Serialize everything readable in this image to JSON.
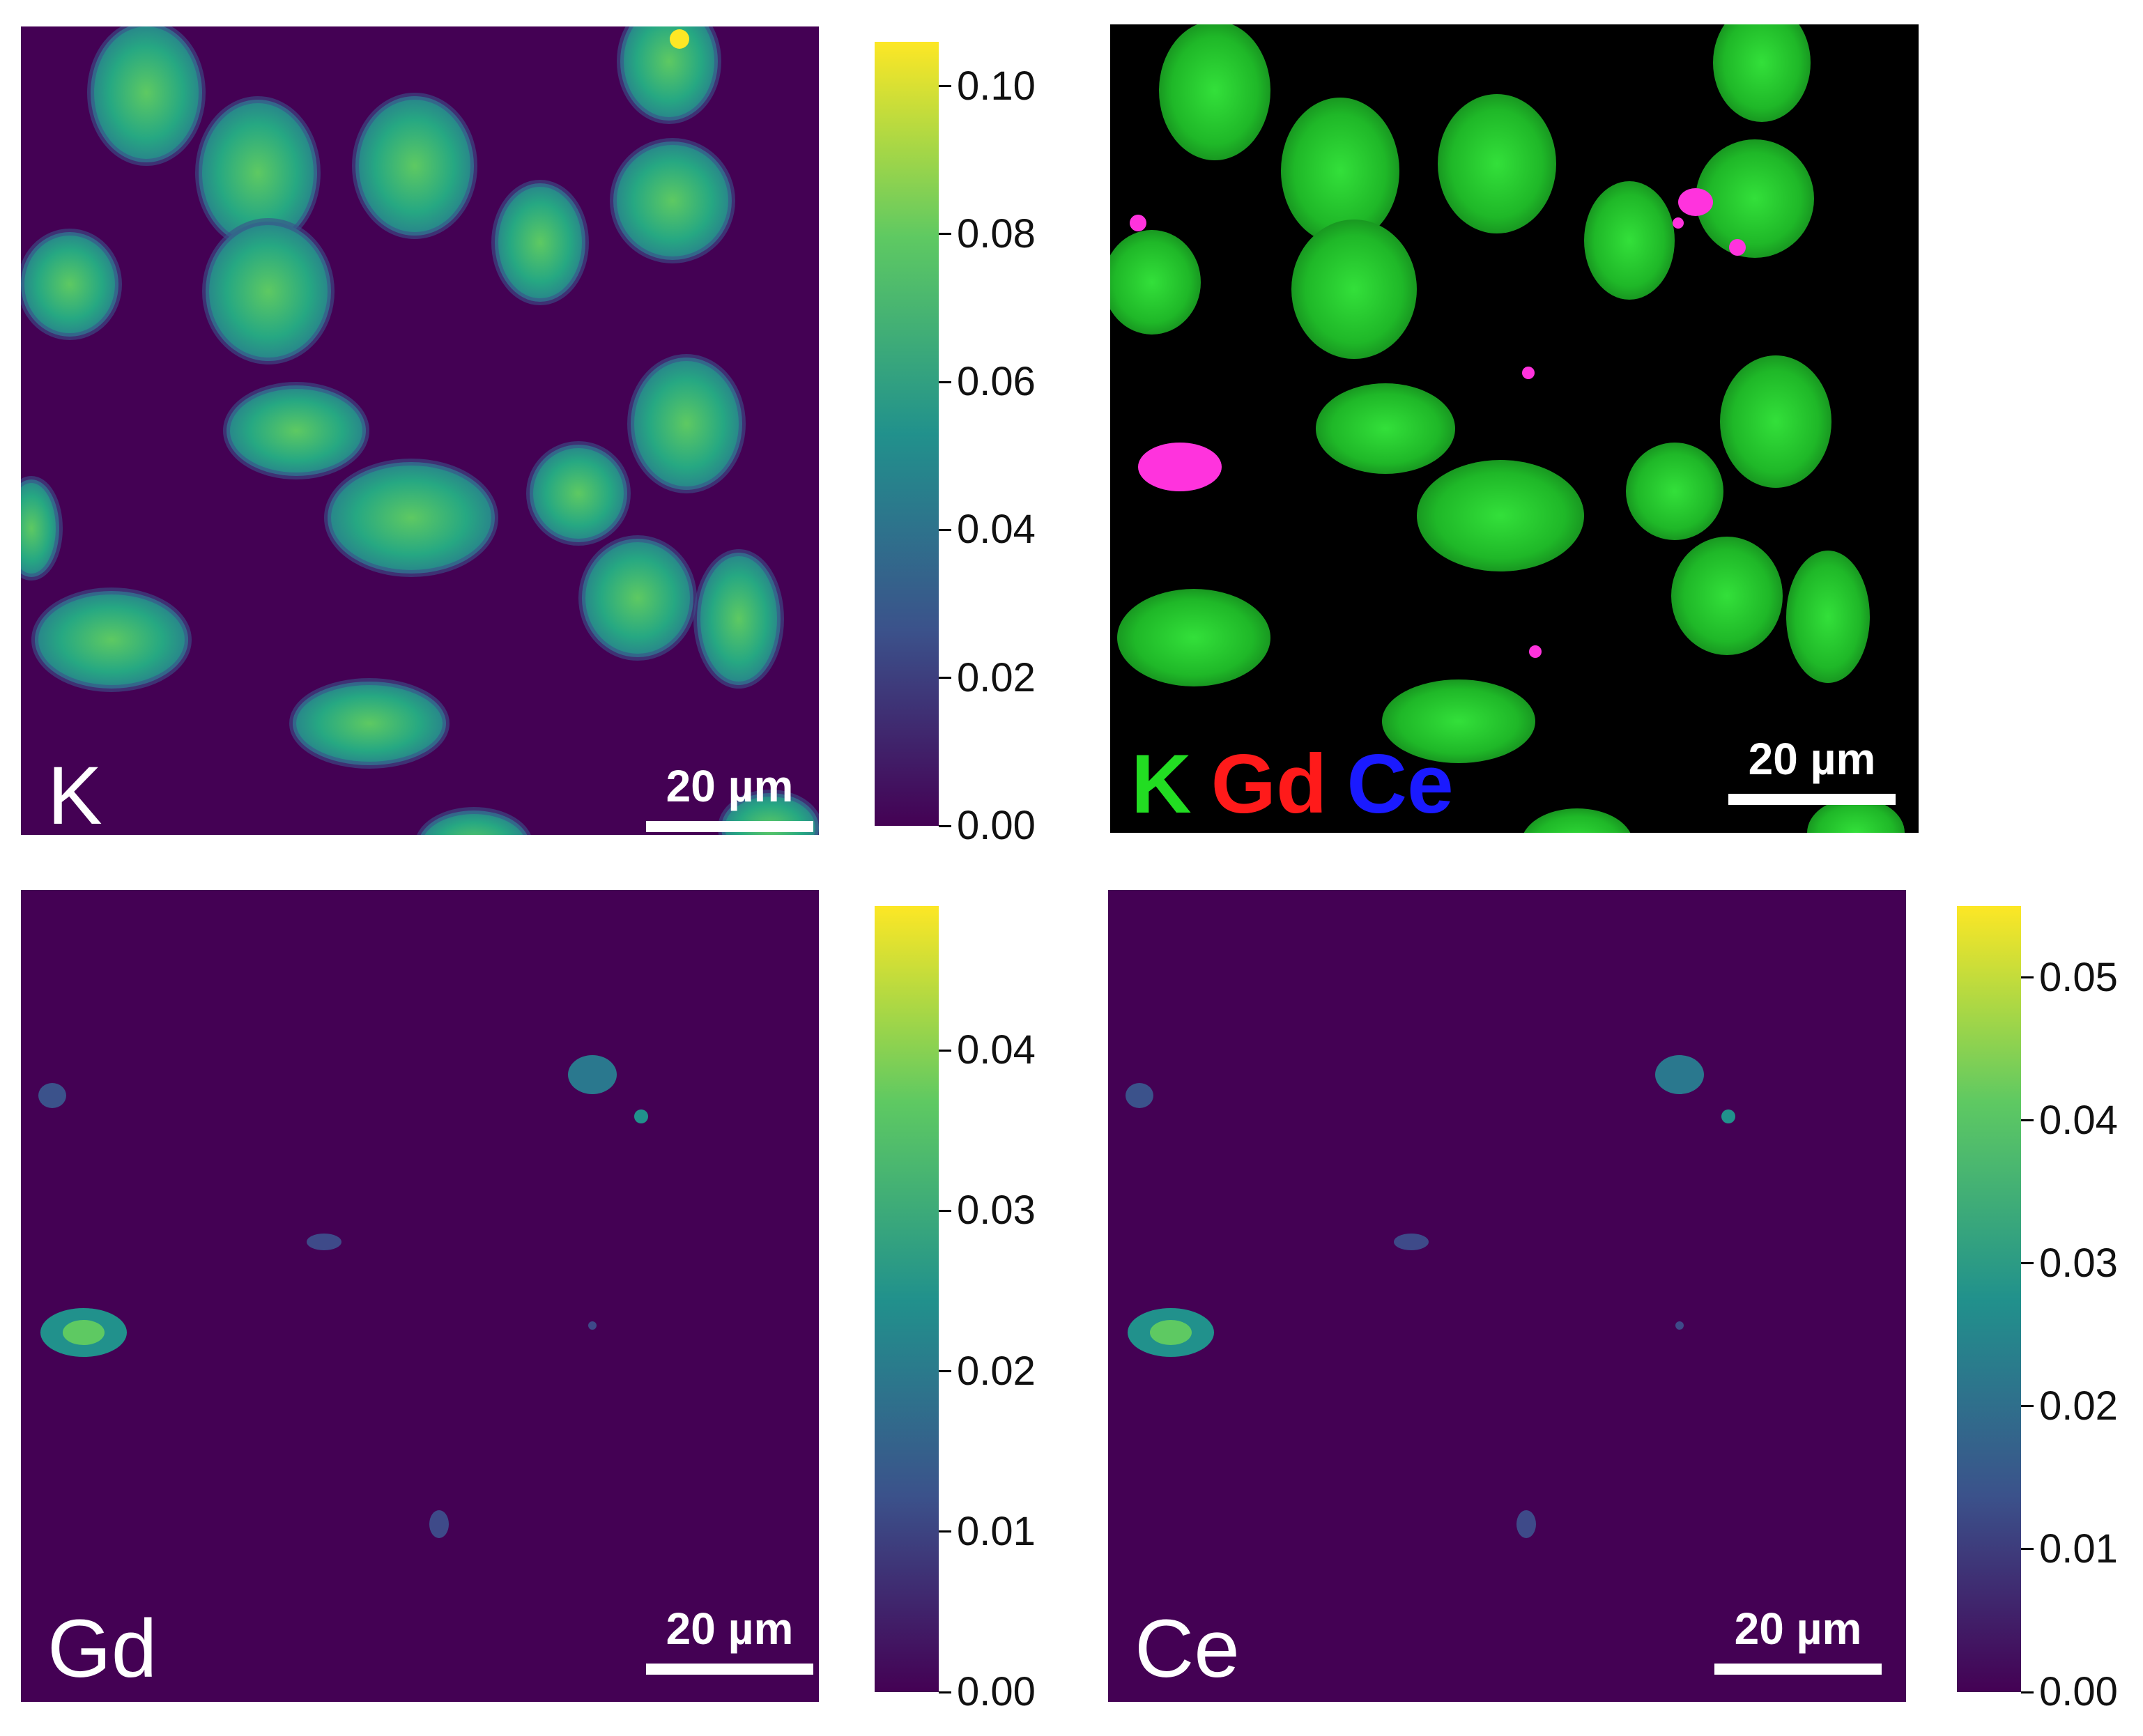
{
  "panels": {
    "k": {
      "label": "K",
      "scalebar": "20 µm"
    },
    "merge": {
      "scalebar": "20 µm",
      "legend": [
        {
          "text": "K",
          "color": "#22dd22"
        },
        {
          "text": "Gd",
          "color": "#ff1a1a"
        },
        {
          "text": "Ce",
          "color": "#1a1aff"
        }
      ]
    },
    "gd": {
      "label": "Gd",
      "scalebar": "20 µm"
    },
    "ce": {
      "label": "Ce",
      "scalebar": "20 µm"
    }
  },
  "colorbars": {
    "k": {
      "max": 0.106,
      "ticks": [
        "0.00",
        "0.02",
        "0.04",
        "0.06",
        "0.08",
        "0.10"
      ]
    },
    "gd": {
      "max": 0.049,
      "ticks": [
        "0.00",
        "0.01",
        "0.02",
        "0.03",
        "0.04"
      ]
    },
    "ce": {
      "max": 0.055,
      "ticks": [
        "0.00",
        "0.01",
        "0.02",
        "0.03",
        "0.04",
        "0.05"
      ]
    }
  },
  "colors": {
    "background_map": "#440154",
    "cell_map": "#23a884",
    "merge_cell": "#22c42a",
    "merge_particle": "#ff33dd"
  }
}
